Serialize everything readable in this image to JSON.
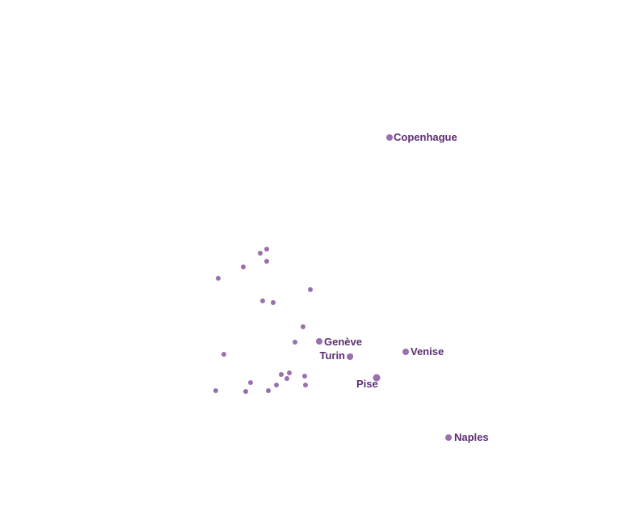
{
  "map": {
    "colors": {
      "marker": "#9b6fae",
      "label": "#5c2d72",
      "background": "#ffffff"
    },
    "labeled_places": [
      {
        "id": "copenhague",
        "name": "Copenhague"
      },
      {
        "id": "geneve",
        "name": "Genève"
      },
      {
        "id": "turin",
        "name": "Turin"
      },
      {
        "id": "venise",
        "name": "Venise"
      },
      {
        "id": "pise",
        "name": "Pise"
      },
      {
        "id": "naples",
        "name": "Naples"
      }
    ],
    "unlabeled_marker_count": 22
  }
}
